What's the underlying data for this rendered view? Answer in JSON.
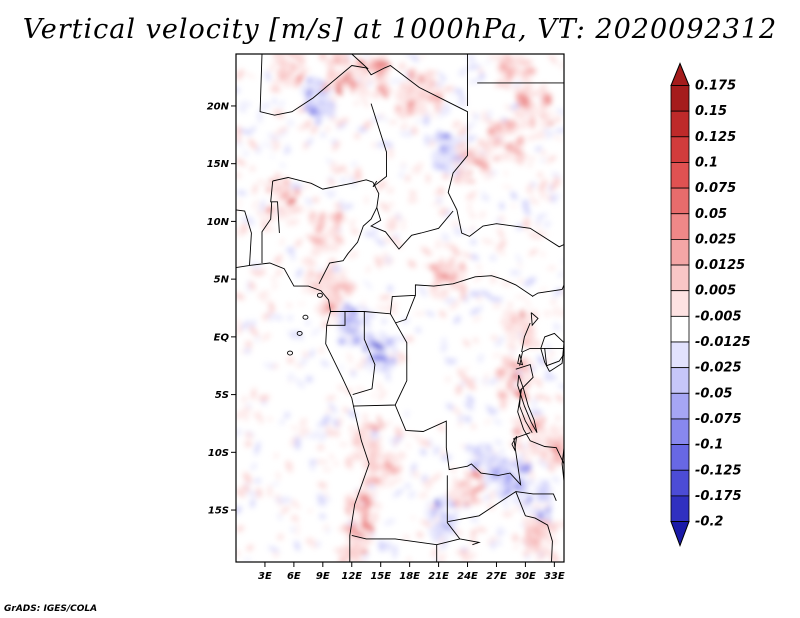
{
  "title": "Vertical velocity [m/s] at 1000hPa, VT: 2020092312",
  "credit": "GrADS: IGES/COLA",
  "map": {
    "lat_range": [
      -19.5,
      24.5
    ],
    "lon_range": [
      0,
      34
    ],
    "lat_ticks": [
      {
        "value": 20,
        "label": "20N"
      },
      {
        "value": 15,
        "label": "15N"
      },
      {
        "value": 10,
        "label": "10N"
      },
      {
        "value": 5,
        "label": "5N"
      },
      {
        "value": 0,
        "label": "EQ"
      },
      {
        "value": -5,
        "label": "5S"
      },
      {
        "value": -10,
        "label": "10S"
      },
      {
        "value": -15,
        "label": "15S"
      }
    ],
    "lon_ticks": [
      {
        "value": 3,
        "label": "3E"
      },
      {
        "value": 6,
        "label": "6E"
      },
      {
        "value": 9,
        "label": "9E"
      },
      {
        "value": 12,
        "label": "12E"
      },
      {
        "value": 15,
        "label": "15E"
      },
      {
        "value": 18,
        "label": "18E"
      },
      {
        "value": 21,
        "label": "21E"
      },
      {
        "value": 24,
        "label": "24E"
      },
      {
        "value": 27,
        "label": "27E"
      },
      {
        "value": 30,
        "label": "30E"
      },
      {
        "value": 33,
        "label": "33E"
      }
    ],
    "field_hotspots": [
      {
        "lon": 5.5,
        "lat": 23.5,
        "sign": 1
      },
      {
        "lon": 18.5,
        "lat": 20.5,
        "sign": 1
      },
      {
        "lon": 19.5,
        "lat": 21.5,
        "sign": 1
      },
      {
        "lon": 8.5,
        "lat": 20.5,
        "sign": -1
      },
      {
        "lon": 10.5,
        "lat": 23.0,
        "sign": 1
      },
      {
        "lon": 14.0,
        "lat": 22.5,
        "sign": 1
      },
      {
        "lon": 22.0,
        "lat": 16.0,
        "sign": -1
      },
      {
        "lon": 24.5,
        "lat": 15.0,
        "sign": 1
      },
      {
        "lon": 28.0,
        "lat": 17.0,
        "sign": 1
      },
      {
        "lon": 29.0,
        "lat": 22.5,
        "sign": 1
      },
      {
        "lon": 31.0,
        "lat": 20.0,
        "sign": 1
      },
      {
        "lon": 9.5,
        "lat": 9.0,
        "sign": 1
      },
      {
        "lon": 9.0,
        "lat": 5.0,
        "sign": 1
      },
      {
        "lon": 10.5,
        "lat": 3.5,
        "sign": 1
      },
      {
        "lon": 12.5,
        "lat": 1.0,
        "sign": -1
      },
      {
        "lon": 15.0,
        "lat": -1.5,
        "sign": -1
      },
      {
        "lon": 29.5,
        "lat": 0.5,
        "sign": 1
      },
      {
        "lon": 29.0,
        "lat": -3.5,
        "sign": 1
      },
      {
        "lon": 30.5,
        "lat": -8.5,
        "sign": 1
      },
      {
        "lon": 33.5,
        "lat": -9.5,
        "sign": 1
      },
      {
        "lon": 26.0,
        "lat": -11.0,
        "sign": -1
      },
      {
        "lon": 28.5,
        "lat": -12.5,
        "sign": -1
      },
      {
        "lon": 31.0,
        "lat": -14.0,
        "sign": -1
      },
      {
        "lon": 13.5,
        "lat": -9.0,
        "sign": 1
      },
      {
        "lon": 15.0,
        "lat": -11.5,
        "sign": 1
      },
      {
        "lon": 13.0,
        "lat": -15.0,
        "sign": 1
      },
      {
        "lon": 12.5,
        "lat": -18.0,
        "sign": 1
      },
      {
        "lon": 21.5,
        "lat": -15.5,
        "sign": -1
      },
      {
        "lon": 24.0,
        "lat": -13.0,
        "sign": 1
      },
      {
        "lon": 31.5,
        "lat": -17.5,
        "sign": 1
      },
      {
        "lon": 22.0,
        "lat": 5.0,
        "sign": 1
      },
      {
        "lon": 5.0,
        "lat": 12.0,
        "sign": 1
      }
    ]
  },
  "colorbar": {
    "levels": [
      {
        "label": "0.175",
        "color": "#a51c1c"
      },
      {
        "label": "0.15",
        "color": "#be2a2a"
      },
      {
        "label": "0.125",
        "color": "#d23c3c"
      },
      {
        "label": "0.1",
        "color": "#e05252"
      },
      {
        "label": "0.075",
        "color": "#e86c6c"
      },
      {
        "label": "0.05",
        "color": "#ef8888"
      },
      {
        "label": "0.025",
        "color": "#f4a6a6"
      },
      {
        "label": "0.0125",
        "color": "#f9c6c6"
      },
      {
        "label": "0.005",
        "color": "#fde2e2"
      },
      {
        "label": "-0.005",
        "color": "#ffffff"
      },
      {
        "label": "-0.0125",
        "color": "#e2e2fd"
      },
      {
        "label": "-0.025",
        "color": "#c6c6f9"
      },
      {
        "label": "-0.05",
        "color": "#a6a6f4"
      },
      {
        "label": "-0.075",
        "color": "#8888ee"
      },
      {
        "label": "-0.1",
        "color": "#6868e4"
      },
      {
        "label": "-0.125",
        "color": "#4c4cd6"
      },
      {
        "label": "-0.175",
        "color": "#3030c0"
      },
      {
        "label": "-0.2",
        "color": "#1a1aa8"
      }
    ],
    "top_color": "#a51c1c",
    "bottom_color": "#1a1aa8"
  }
}
